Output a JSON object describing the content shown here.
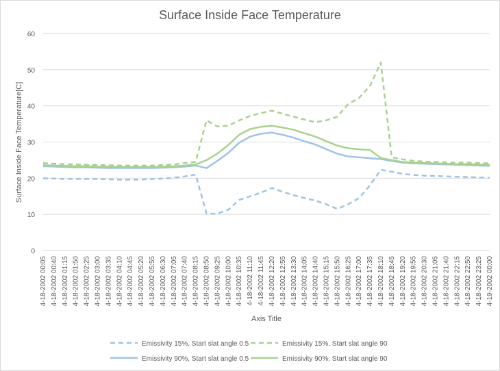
{
  "chart_data": {
    "type": "line",
    "title": "Surface Inside Face Temperature",
    "xlabel": "Axis Title",
    "ylabel": "Surface Inside Face Temperature[C]",
    "ylim": [
      0,
      60
    ],
    "yticks": [
      0,
      10,
      20,
      30,
      40,
      50,
      60
    ],
    "grid": "horizontal",
    "legend_position": "bottom",
    "x": [
      "4-18-2002 00:05",
      "4-18-2002 00:40",
      "4-18-2002 01:15",
      "4-18-2002 01:50",
      "4-18-2002 02:25",
      "4-18-2002 03:00",
      "4-18-2002 03:35",
      "4-18-2002 04:10",
      "4-18-2002 04:45",
      "4-18-2002 05:20",
      "4-18-2002 05:55",
      "4-18-2002 06:30",
      "4-18-2002 07:05",
      "4-18-2002 07:40",
      "4-18-2002 08:15",
      "4-18-2002 08:50",
      "4-18-2002 09:25",
      "4-18-2002 10:00",
      "4-18-2002 10:35",
      "4-18-2002 11:10",
      "4-18-2002 11:45",
      "4-18-2002 12:20",
      "4-18-2002 12:55",
      "4-18-2002 13:30",
      "4-18-2002 14:05",
      "4-18-2002 14:40",
      "4-18-2002 15:15",
      "4-18-2002 15:50",
      "4-18-2002 16:25",
      "4-18-2002 17:00",
      "4-18-2002 17:35",
      "4-18-2002 18:10",
      "4-18-2002 18:45",
      "4-18-2002 19:20",
      "4-18-2002 19:55",
      "4-18-2002 20:30",
      "4-18-2002 21:05",
      "4-18-2002 21:40",
      "4-18-2002 22:15",
      "4-18-2002 22:50",
      "4-18-2002 23:25",
      "4-19-2002 00:00"
    ],
    "series": [
      {
        "name": "Emissivity 15%, Start slat angle 0.5",
        "color": "#9dc3e6",
        "style": "dashed",
        "values": [
          20.0,
          19.9,
          19.8,
          19.8,
          19.8,
          19.8,
          19.7,
          19.6,
          19.6,
          19.6,
          19.8,
          19.9,
          20.1,
          20.5,
          21.0,
          10.2,
          10.2,
          11.3,
          14.0,
          15.0,
          16.0,
          17.3,
          16.2,
          15.3,
          14.5,
          13.8,
          12.8,
          11.5,
          12.8,
          14.5,
          18.0,
          22.3,
          21.8,
          21.2,
          20.9,
          20.7,
          20.6,
          20.5,
          20.4,
          20.3,
          20.2,
          20.1
        ]
      },
      {
        "name": "Emissivity 15%, Start slat angle 90",
        "color": "#a9d18e",
        "style": "dashed",
        "values": [
          24.2,
          24.0,
          23.9,
          23.8,
          23.7,
          23.7,
          23.6,
          23.5,
          23.5,
          23.5,
          23.5,
          23.6,
          23.8,
          24.2,
          24.5,
          36.0,
          34.3,
          34.5,
          36.0,
          37.2,
          38.0,
          38.7,
          37.8,
          37.0,
          36.2,
          35.5,
          36.0,
          37.0,
          40.5,
          42.2,
          45.5,
          52.0,
          25.8,
          25.2,
          24.8,
          24.6,
          24.5,
          24.4,
          24.3,
          24.3,
          24.2,
          24.1
        ]
      },
      {
        "name": "Emissivity 90%, Start slat angle 0.5",
        "color": "#9dc3e6",
        "style": "solid",
        "values": [
          23.3,
          23.2,
          23.1,
          23.0,
          23.0,
          22.9,
          22.8,
          22.8,
          22.8,
          22.8,
          22.8,
          22.9,
          23.0,
          23.2,
          23.5,
          22.8,
          24.8,
          27.0,
          29.8,
          31.5,
          32.3,
          32.6,
          32.0,
          31.2,
          30.2,
          29.3,
          28.0,
          26.8,
          26.0,
          25.8,
          25.5,
          25.3,
          24.8,
          24.3,
          24.1,
          24.0,
          23.9,
          23.8,
          23.7,
          23.6,
          23.5,
          23.4
        ]
      },
      {
        "name": "Emissivity 90%, Start slat angle 90",
        "color": "#a9d18e",
        "style": "solid",
        "values": [
          23.6,
          23.5,
          23.4,
          23.3,
          23.3,
          23.2,
          23.2,
          23.1,
          23.1,
          23.1,
          23.1,
          23.2,
          23.3,
          23.5,
          23.8,
          25.0,
          26.8,
          29.2,
          32.0,
          33.6,
          34.2,
          34.5,
          34.0,
          33.4,
          32.4,
          31.5,
          30.2,
          29.0,
          28.3,
          28.0,
          27.8,
          25.6,
          25.0,
          24.5,
          24.3,
          24.2,
          24.1,
          24.0,
          23.9,
          23.9,
          23.8,
          23.7
        ]
      }
    ]
  }
}
